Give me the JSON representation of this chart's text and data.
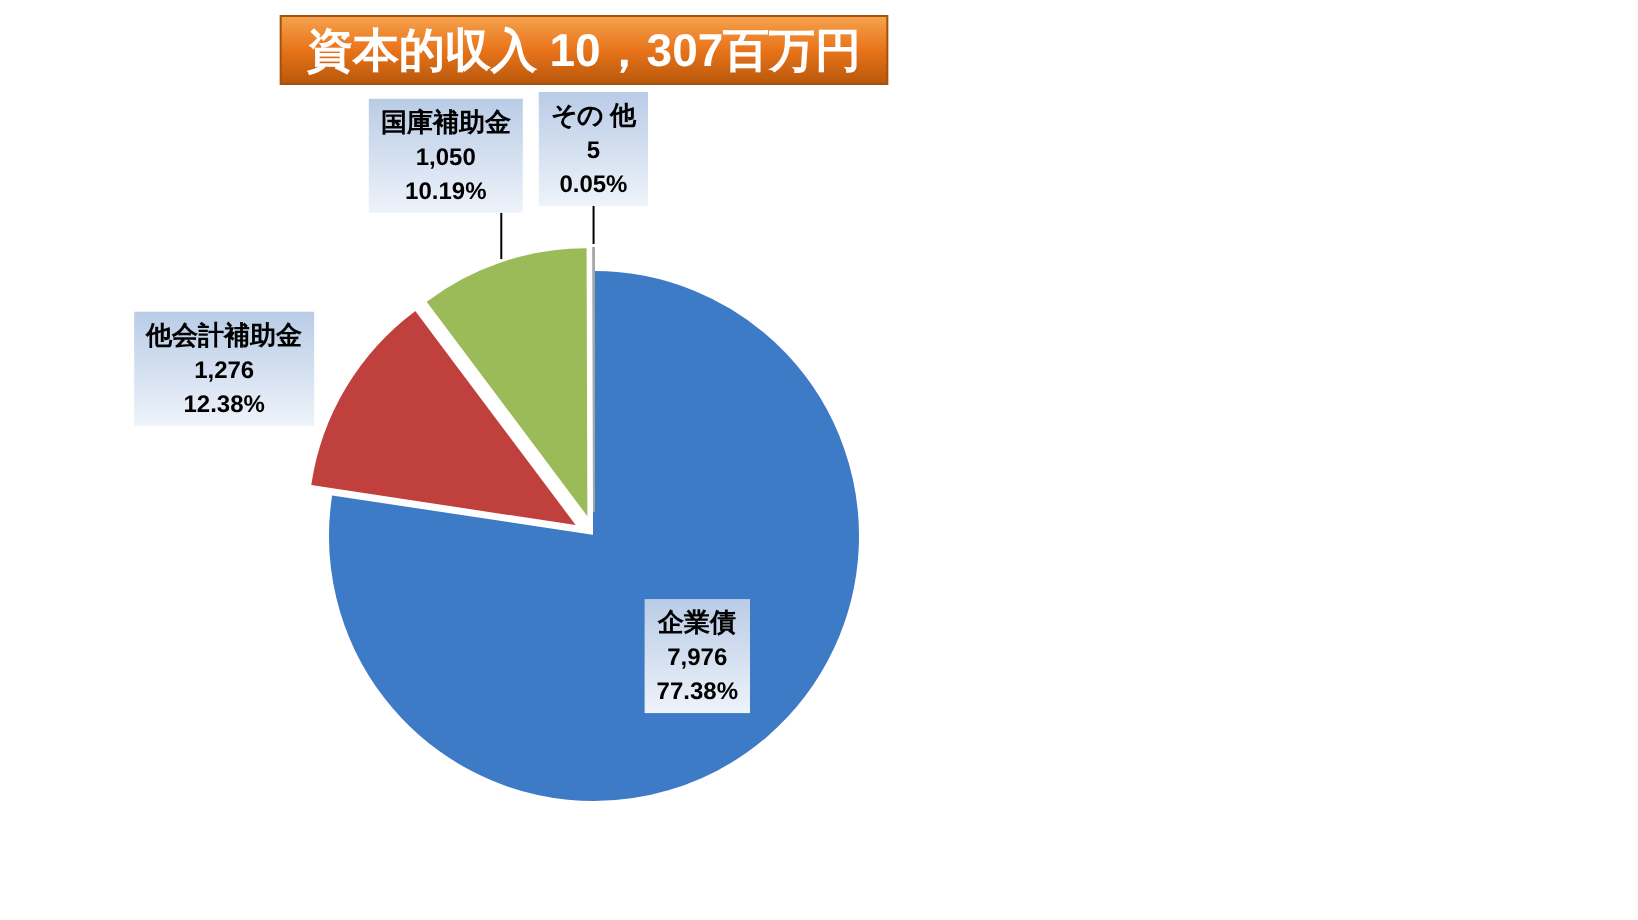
{
  "chart_data": {
    "type": "pie",
    "title": "資本的収入 10，307百万円",
    "categories": [
      "企業債",
      "他会計補助金",
      "国庫補助金",
      "その 他"
    ],
    "values": [
      7976,
      1276,
      1050,
      5
    ],
    "colors": [
      "#3e7bc6",
      "#c0403d",
      "#9bbb59",
      "#a5a5a5"
    ],
    "value_labels": [
      "7,976\n77.38%",
      "1,276\n12.38%",
      "1,050\n10.19%",
      "5\n0.05%"
    ]
  }
}
